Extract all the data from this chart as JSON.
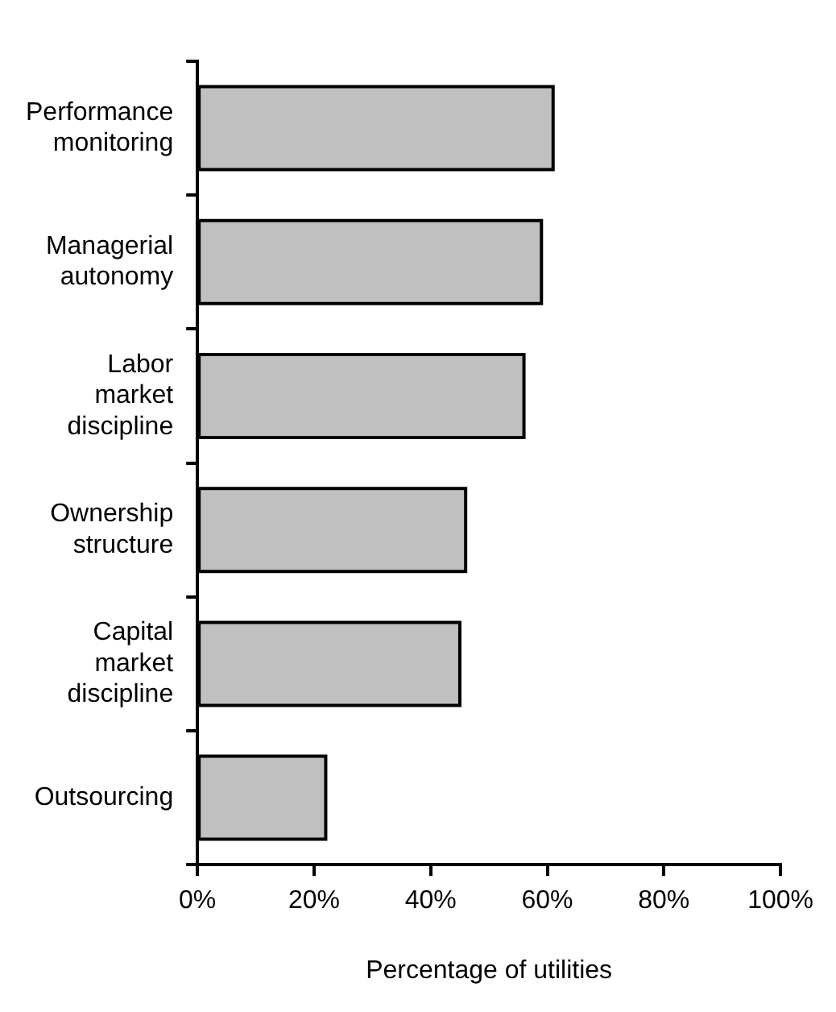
{
  "chart_data": {
    "type": "bar",
    "orientation": "horizontal",
    "xlabel": "Percentage of utilities",
    "categories": [
      "Performance monitoring",
      "Managerial autonomy",
      "Labor market discipline",
      "Ownership structure",
      "Capital market discipline",
      "Outsourcing"
    ],
    "values": [
      61,
      59,
      56,
      46,
      45,
      22
    ],
    "color": "#c0c0c0",
    "xlim": [
      0,
      100
    ],
    "xticks": [
      {
        "value": 0,
        "label": "0%"
      },
      {
        "value": 20,
        "label": "20%"
      },
      {
        "value": 40,
        "label": "40%"
      },
      {
        "value": 60,
        "label": "60%"
      },
      {
        "value": 80,
        "label": "80%"
      },
      {
        "value": 100,
        "label": "100%"
      }
    ],
    "grid": false,
    "legend": false
  }
}
